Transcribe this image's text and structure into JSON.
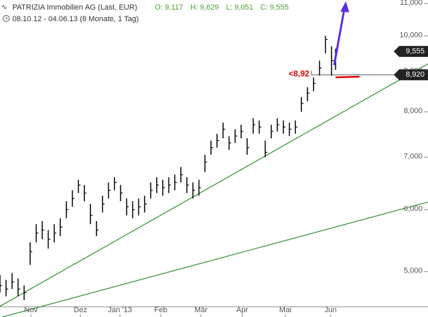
{
  "chart_data": {
    "type": "hlc",
    "title": "PATRIZIA Immobilien AG (Last, EUR)",
    "open_label": "O: 9,117",
    "high_label": "H: 9,629",
    "low_label": "L: 9,051",
    "close_label": "C: 9,555",
    "subtitle": "08.10.12 - 04.06.13 (8 Monate, 1 Tag)",
    "x": [
      0,
      3,
      6,
      9,
      12,
      15,
      18,
      21,
      24,
      27,
      30,
      33,
      36,
      39,
      42,
      45,
      48,
      51,
      54,
      57,
      60,
      63,
      66,
      69,
      72,
      75,
      78,
      81,
      84,
      87,
      90,
      93,
      96,
      99,
      102,
      105,
      108,
      111,
      114,
      117,
      120,
      123,
      126,
      129,
      132,
      135,
      138,
      141,
      144,
      147,
      150,
      153,
      156,
      159,
      162,
      165,
      167
    ],
    "close": [
      4800,
      4750,
      4850,
      4750,
      4700,
      5300,
      5600,
      5650,
      5500,
      5600,
      5700,
      6000,
      6200,
      6450,
      6300,
      5900,
      5650,
      6100,
      6350,
      6500,
      6300,
      6050,
      6000,
      6050,
      6100,
      6350,
      6450,
      6400,
      6450,
      6500,
      6650,
      6450,
      6350,
      6400,
      6900,
      7200,
      7350,
      7600,
      7300,
      7450,
      7550,
      7200,
      7700,
      7650,
      7100,
      7550,
      7700,
      7650,
      7600,
      7650,
      8200,
      8450,
      8700,
      9100,
      9900,
      9300,
      9555
    ],
    "high": [
      4950,
      4880,
      4980,
      4900,
      4800,
      5450,
      5750,
      5800,
      5650,
      5750,
      5850,
      6150,
      6350,
      6550,
      6450,
      6100,
      5800,
      6250,
      6500,
      6600,
      6450,
      6200,
      6150,
      6200,
      6250,
      6500,
      6600,
      6550,
      6600,
      6650,
      6800,
      6600,
      6500,
      6550,
      7050,
      7350,
      7500,
      7750,
      7450,
      7600,
      7700,
      7400,
      7850,
      7800,
      7350,
      7700,
      7850,
      7800,
      7750,
      7800,
      8350,
      8600,
      8850,
      9300,
      10000,
      9700,
      9629
    ],
    "low": [
      4700,
      4650,
      4750,
      4650,
      4600,
      5100,
      5450,
      5500,
      5350,
      5450,
      5550,
      5850,
      6050,
      6300,
      6150,
      5750,
      5550,
      5950,
      6200,
      6350,
      6150,
      5900,
      5850,
      5900,
      5950,
      6200,
      6300,
      6250,
      6300,
      6350,
      6500,
      6300,
      6200,
      6250,
      6700,
      7050,
      7200,
      7400,
      7150,
      7300,
      7400,
      7050,
      7500,
      7500,
      7000,
      7400,
      7550,
      7500,
      7450,
      7500,
      8000,
      8250,
      8500,
      8900,
      9500,
      8900,
      9051
    ],
    "color": "#000000",
    "xlim": [
      0,
      213
    ],
    "ylim": [
      4375,
      11115
    ],
    "log_y": true,
    "xticks": [
      {
        "value": 15.4,
        "label": "Nov"
      },
      {
        "value": 40,
        "label": "Dez"
      },
      {
        "value": 59.7,
        "label": "Jan '13"
      },
      {
        "value": 80,
        "label": "Feb"
      },
      {
        "value": 100,
        "label": "Mär"
      },
      {
        "value": 120.5,
        "label": "Apr"
      },
      {
        "value": 142,
        "label": "Mai"
      },
      {
        "value": 164.5,
        "label": "Jun"
      }
    ],
    "yticks": [
      {
        "value": 5000,
        "label": "5,000"
      },
      {
        "value": 6000,
        "label": "6,000"
      },
      {
        "value": 7000,
        "label": "7,000"
      },
      {
        "value": 8000,
        "label": "8,000"
      },
      {
        "value": 9000,
        "label": "9,000"
      },
      {
        "value": 10000,
        "label": "10,000"
      },
      {
        "value": 11000,
        "label": "11,000"
      }
    ],
    "trendlines": [
      {
        "color": "#2e8b2e",
        "x": [
          0,
          213
        ],
        "values": [
          4515,
          9214
        ]
      },
      {
        "color": "#2e8b2e",
        "x": [
          0,
          213
        ],
        "values": [
          4367,
          6136
        ]
      }
    ],
    "last_price": {
      "value": 9555,
      "label": "9,555"
    },
    "support": {
      "value": 8920,
      "label": "8,920",
      "start_x": 155
    },
    "annotation": "<8,92",
    "annotation_color": "#e00000"
  }
}
